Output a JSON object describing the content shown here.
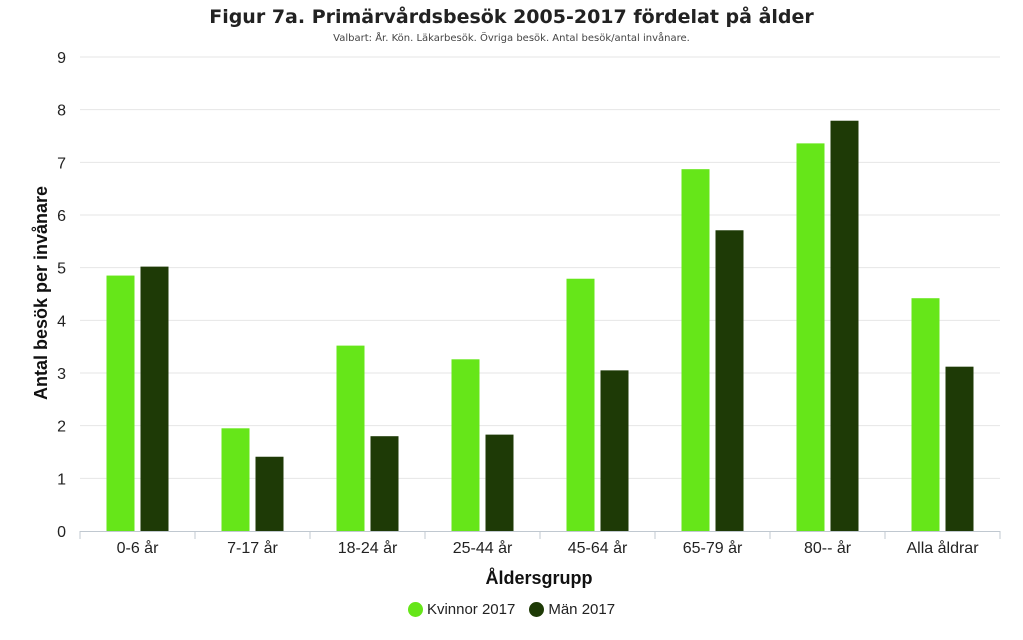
{
  "chart_data": {
    "type": "bar",
    "title": "Figur 7a. Primärvårdsbesök 2005-2017 fördelat på ålder",
    "subtitle": "Valbart: År. Kön. Läkarbesök. Övriga besök. Antal besök/antal invånare.",
    "xlabel": "Åldersgrupp",
    "ylabel": "Antal besök per invånare",
    "ylim": [
      0,
      9
    ],
    "yticks": [
      "0",
      "1",
      "2",
      "3",
      "4",
      "5",
      "6",
      "7",
      "8",
      "9"
    ],
    "categories": [
      "0-6 år",
      "7-17 år",
      "18-24 år",
      "25-44 år",
      "45-64 år",
      "65-79 år",
      "80-- år",
      "Alla åldrar"
    ],
    "series": [
      {
        "name": "Kvinnor 2017",
        "color": "#66e619",
        "values": [
          4.85,
          1.95,
          3.52,
          3.26,
          4.79,
          6.87,
          7.36,
          4.42
        ]
      },
      {
        "name": "Män 2017",
        "color": "#1e3a06",
        "values": [
          5.02,
          1.41,
          1.8,
          1.83,
          3.05,
          5.71,
          7.79,
          3.12
        ]
      }
    ],
    "grid": true,
    "legend_position": "bottom"
  }
}
